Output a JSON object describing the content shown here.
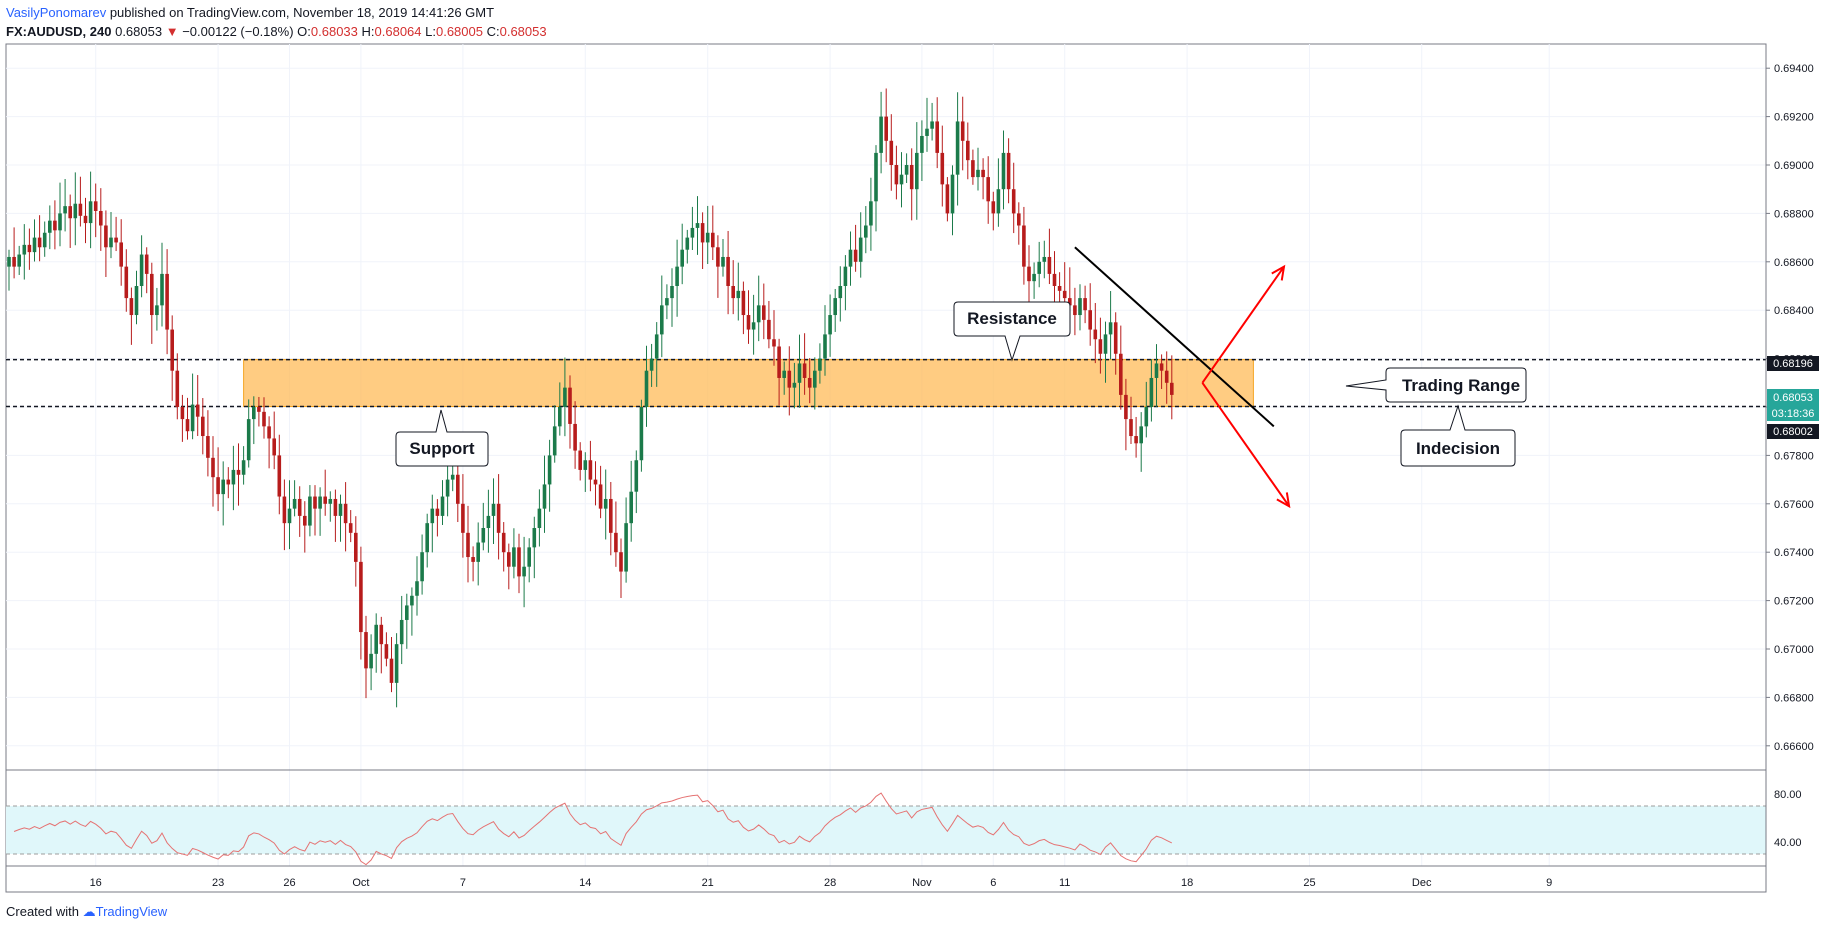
{
  "header": {
    "author": "VasilyPonomarev",
    "published": "published on TradingView.com, November 18, 2019 14:41:26 GMT",
    "symbol": "FX:AUDUSD, 240",
    "last": "0.68053",
    "change": "−0.00122 (−0.18%)",
    "o_label": "O:",
    "o": "0.68033",
    "h_label": "H:",
    "h": "0.68064",
    "l_label": "L:",
    "l": "0.68005",
    "c_label": "C:",
    "c": "0.68053"
  },
  "footer": {
    "created_with": "Created with",
    "brand": "TradingView"
  },
  "annotations": {
    "resistance": "Resistance",
    "support": "Support",
    "trading_range": "Trading Range",
    "indecision": "Indecision"
  },
  "price_tags": {
    "upper": "0.68196",
    "last": "0.68053",
    "countdown": "03:18:36",
    "lower": "0.68002"
  },
  "colors": {
    "up": "#26a69a",
    "up_body": "#1b7a4a",
    "down": "#b71c1c",
    "zone": "#ffb74d",
    "rsi_line": "#e57373",
    "rsi_band": "#e0f7fa",
    "arrow": "#ff0000",
    "last_tag": "#26a69a"
  },
  "chart_data": [
    {
      "type": "candlestick",
      "symbol": "FX:AUDUSD",
      "interval": "240",
      "y_range": [
        0.665,
        0.695
      ],
      "y_ticks": [
        "0.69400",
        "0.69200",
        "0.69000",
        "0.68800",
        "0.68600",
        "0.68400",
        "0.68200",
        "0.68000",
        "0.67800",
        "0.67600",
        "0.67400",
        "0.67200",
        "0.67000",
        "0.66800",
        "0.66600"
      ],
      "x_ticks": [
        "16",
        "23",
        "26",
        "Oct",
        "7",
        "14",
        "21",
        "28",
        "Nov",
        "6",
        "11",
        "18",
        "25",
        "Dec",
        "9"
      ],
      "x_tick_index": [
        17,
        41,
        55,
        69,
        89,
        113,
        137,
        161,
        179,
        193,
        207,
        231,
        255,
        277,
        302
      ],
      "last_index": 234,
      "zone": {
        "from_index": 46,
        "to_index": 244,
        "low": 0.68002,
        "high": 0.68196
      },
      "horizontal_levels": [
        0.68196,
        0.68002
      ],
      "trendline": {
        "from": [
          209,
          0.6866
        ],
        "to": [
          248,
          0.6792
        ]
      },
      "arrows": [
        {
          "from": [
            234,
            0.681
          ],
          "to": [
            250,
            0.6858
          ]
        },
        {
          "from": [
            234,
            0.681
          ],
          "to": [
            251,
            0.6759
          ]
        }
      ],
      "closes": [
        0.6862,
        0.6858,
        0.6863,
        0.6867,
        0.6864,
        0.687,
        0.6866,
        0.6872,
        0.6877,
        0.6873,
        0.688,
        0.6883,
        0.6878,
        0.6884,
        0.6879,
        0.6876,
        0.6885,
        0.6881,
        0.6875,
        0.6866,
        0.687,
        0.6868,
        0.6858,
        0.6845,
        0.6838,
        0.685,
        0.6863,
        0.6855,
        0.6838,
        0.6842,
        0.6855,
        0.6832,
        0.6815,
        0.68,
        0.6795,
        0.679,
        0.6801,
        0.6796,
        0.6788,
        0.6779,
        0.6771,
        0.6764,
        0.677,
        0.6768,
        0.6774,
        0.6772,
        0.6778,
        0.6795,
        0.68,
        0.6798,
        0.6792,
        0.6787,
        0.678,
        0.6763,
        0.6752,
        0.6758,
        0.6762,
        0.6755,
        0.6751,
        0.6763,
        0.6758,
        0.6763,
        0.676,
        0.6762,
        0.6755,
        0.676,
        0.6752,
        0.6748,
        0.6736,
        0.6707,
        0.6692,
        0.6698,
        0.671,
        0.6702,
        0.6696,
        0.6686,
        0.6702,
        0.6712,
        0.6718,
        0.6722,
        0.6728,
        0.674,
        0.6752,
        0.6758,
        0.6755,
        0.6763,
        0.677,
        0.6772,
        0.676,
        0.6748,
        0.6738,
        0.6736,
        0.6744,
        0.675,
        0.6755,
        0.676,
        0.6748,
        0.674,
        0.6734,
        0.6742,
        0.673,
        0.6734,
        0.6742,
        0.675,
        0.6758,
        0.6768,
        0.678,
        0.6792,
        0.68,
        0.6808,
        0.6793,
        0.6782,
        0.6774,
        0.6778,
        0.677,
        0.6768,
        0.6758,
        0.6762,
        0.6748,
        0.674,
        0.6732,
        0.6752,
        0.6765,
        0.6778,
        0.68,
        0.6815,
        0.682,
        0.683,
        0.6842,
        0.6845,
        0.685,
        0.6858,
        0.6865,
        0.687,
        0.6874,
        0.6876,
        0.6868,
        0.6872,
        0.6866,
        0.6858,
        0.6862,
        0.685,
        0.6845,
        0.6848,
        0.6838,
        0.6832,
        0.6835,
        0.6842,
        0.6836,
        0.6828,
        0.6825,
        0.6812,
        0.6815,
        0.6808,
        0.681,
        0.6818,
        0.6812,
        0.6808,
        0.6815,
        0.682,
        0.683,
        0.6838,
        0.6845,
        0.685,
        0.6858,
        0.6865,
        0.686,
        0.687,
        0.6875,
        0.6885,
        0.6905,
        0.692,
        0.691,
        0.69,
        0.6892,
        0.6896,
        0.69,
        0.689,
        0.6905,
        0.6912,
        0.6915,
        0.6918,
        0.6905,
        0.6892,
        0.688,
        0.6896,
        0.6918,
        0.691,
        0.6902,
        0.6895,
        0.6898,
        0.6895,
        0.6885,
        0.688,
        0.689,
        0.6905,
        0.689,
        0.688,
        0.6875,
        0.6858,
        0.6852,
        0.6855,
        0.686,
        0.6862,
        0.6855,
        0.685,
        0.6848,
        0.6845,
        0.6842,
        0.6838,
        0.6845,
        0.684,
        0.6832,
        0.6828,
        0.6822,
        0.683,
        0.6835,
        0.6822,
        0.6805,
        0.6795,
        0.6788,
        0.6785,
        0.6792,
        0.68,
        0.6812,
        0.6818,
        0.6815,
        0.681,
        0.6805
      ]
    },
    {
      "type": "line",
      "name": "RSI",
      "y_range": [
        20,
        100
      ],
      "y_ticks": [
        "80.00",
        "40.00"
      ],
      "band": [
        30,
        70
      ]
    }
  ]
}
